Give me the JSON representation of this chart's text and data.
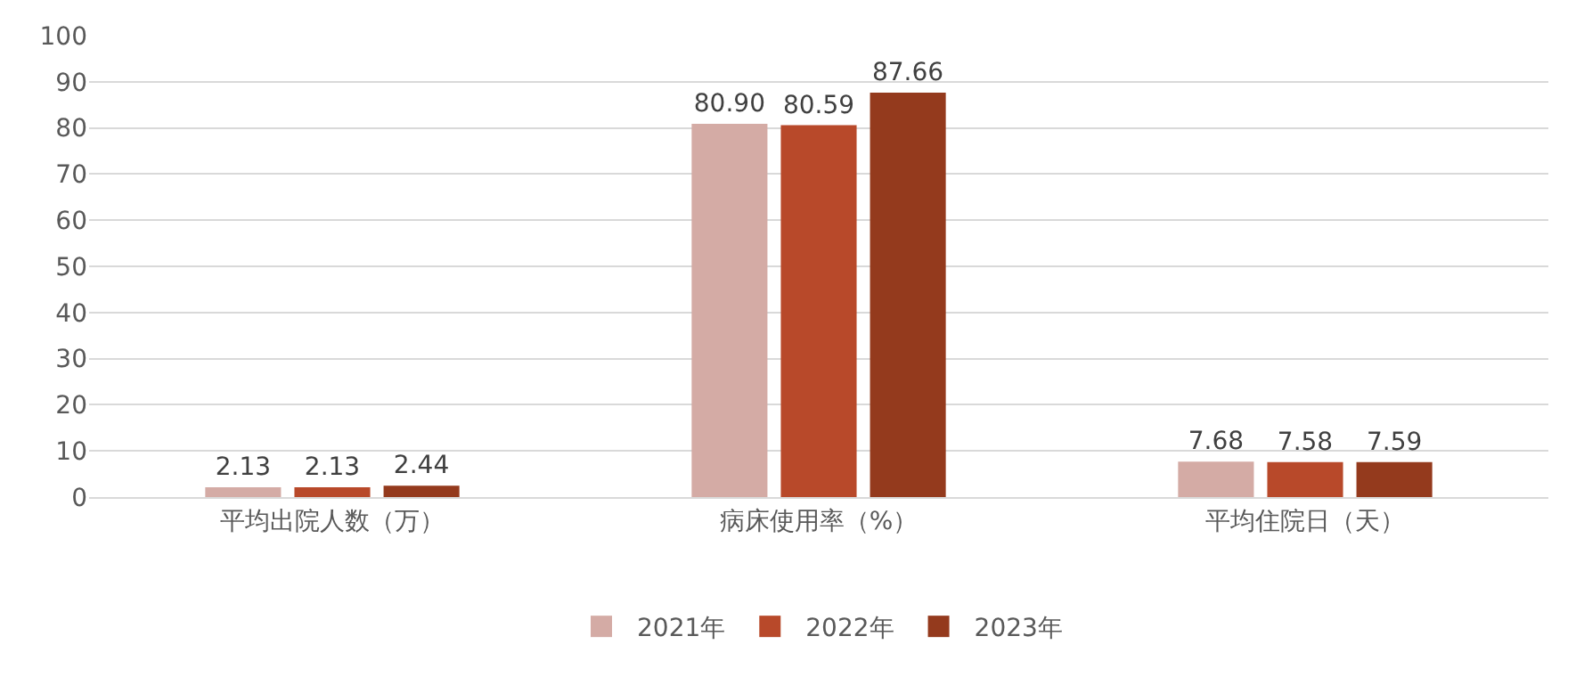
{
  "chart_data": {
    "type": "bar",
    "categories": [
      "平均出院人数（万）",
      "病床使用率（%）",
      "平均住院日（天）"
    ],
    "series": [
      {
        "name": "2021年",
        "color": "#d4aba5",
        "values": [
          2.13,
          80.9,
          7.68
        ],
        "value_labels": [
          "2.13",
          "80.90",
          "7.68"
        ]
      },
      {
        "name": "2022年",
        "color": "#b8492a",
        "values": [
          2.13,
          80.59,
          7.58
        ],
        "value_labels": [
          "2.13",
          "80.59",
          "7.58"
        ]
      },
      {
        "name": "2023年",
        "color": "#943a1d",
        "values": [
          2.44,
          87.66,
          7.59
        ],
        "value_labels": [
          "2.44",
          "87.66",
          "7.59"
        ]
      }
    ],
    "ylim": [
      0,
      100
    ],
    "yticks": [
      0,
      10,
      20,
      30,
      40,
      50,
      60,
      70,
      80,
      90,
      100
    ],
    "grid": "y",
    "legend": "bottom"
  }
}
